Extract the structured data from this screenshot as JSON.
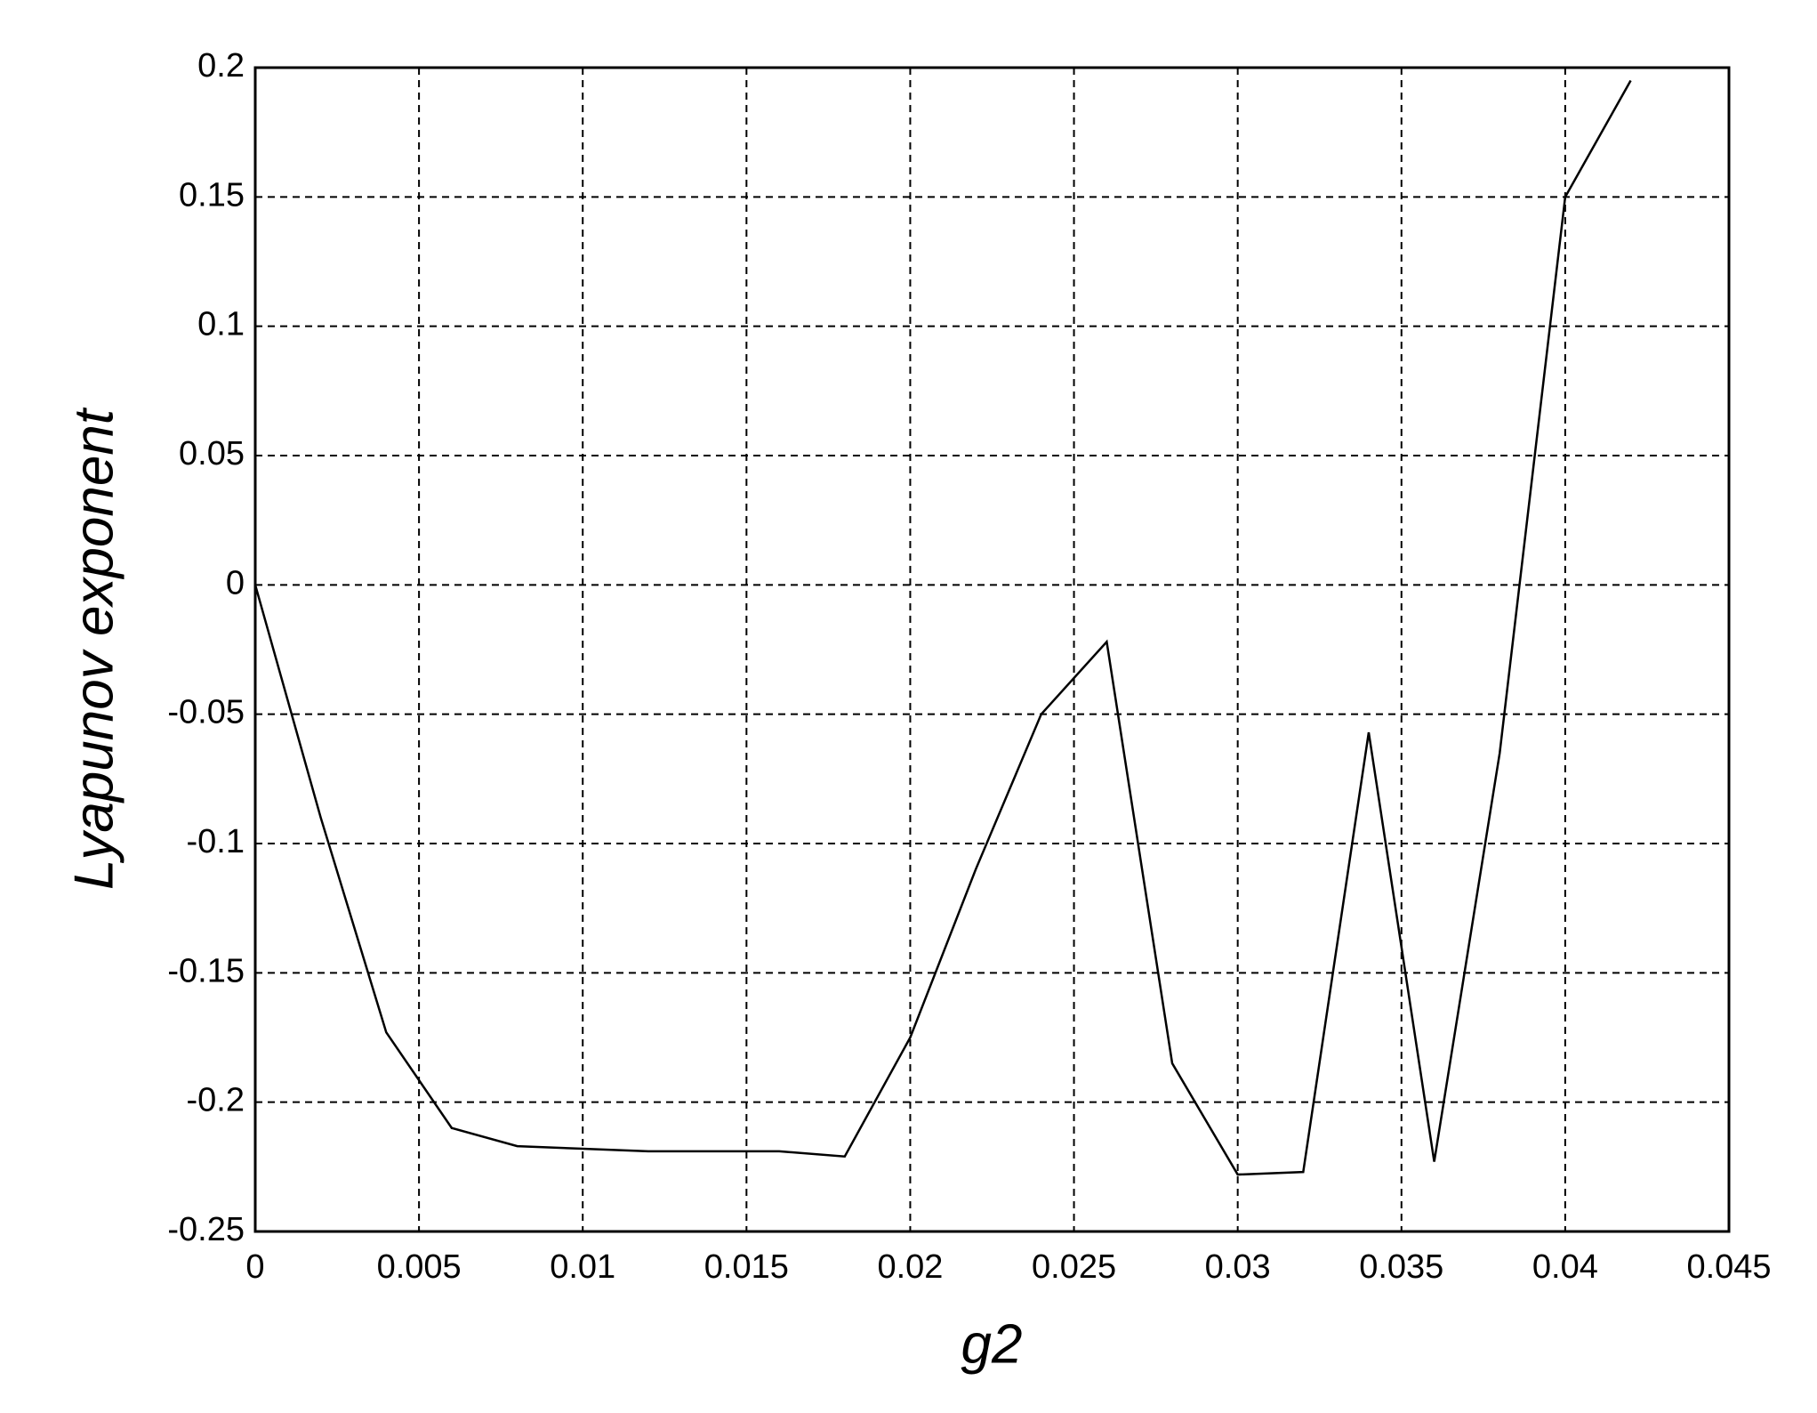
{
  "chart_data": {
    "type": "line",
    "xlabel": "g2",
    "ylabel": "Lyapunov exponent",
    "x": [
      0,
      0.002,
      0.004,
      0.006,
      0.008,
      0.01,
      0.012,
      0.014,
      0.016,
      0.018,
      0.02,
      0.022,
      0.024,
      0.026,
      0.028,
      0.03,
      0.032,
      0.034,
      0.036,
      0.038,
      0.04,
      0.042
    ],
    "values": [
      0,
      -0.09,
      -0.173,
      -0.21,
      -0.217,
      -0.218,
      -0.219,
      -0.219,
      -0.219,
      -0.221,
      -0.175,
      -0.11,
      -0.05,
      -0.022,
      -0.185,
      -0.228,
      -0.227,
      -0.057,
      -0.223,
      -0.065,
      0.15,
      0.195
    ],
    "color": "#000000",
    "xlim": [
      0,
      0.045
    ],
    "xticks": [
      0,
      0.005,
      0.01,
      0.015,
      0.02,
      0.025,
      0.03,
      0.035,
      0.04,
      0.045
    ],
    "ylim": [
      -0.25,
      0.2
    ],
    "yticks": [
      -0.25,
      -0.2,
      -0.15,
      -0.1,
      -0.05,
      0,
      0.05,
      0.1,
      0.15,
      0.2
    ],
    "grid": true
  }
}
